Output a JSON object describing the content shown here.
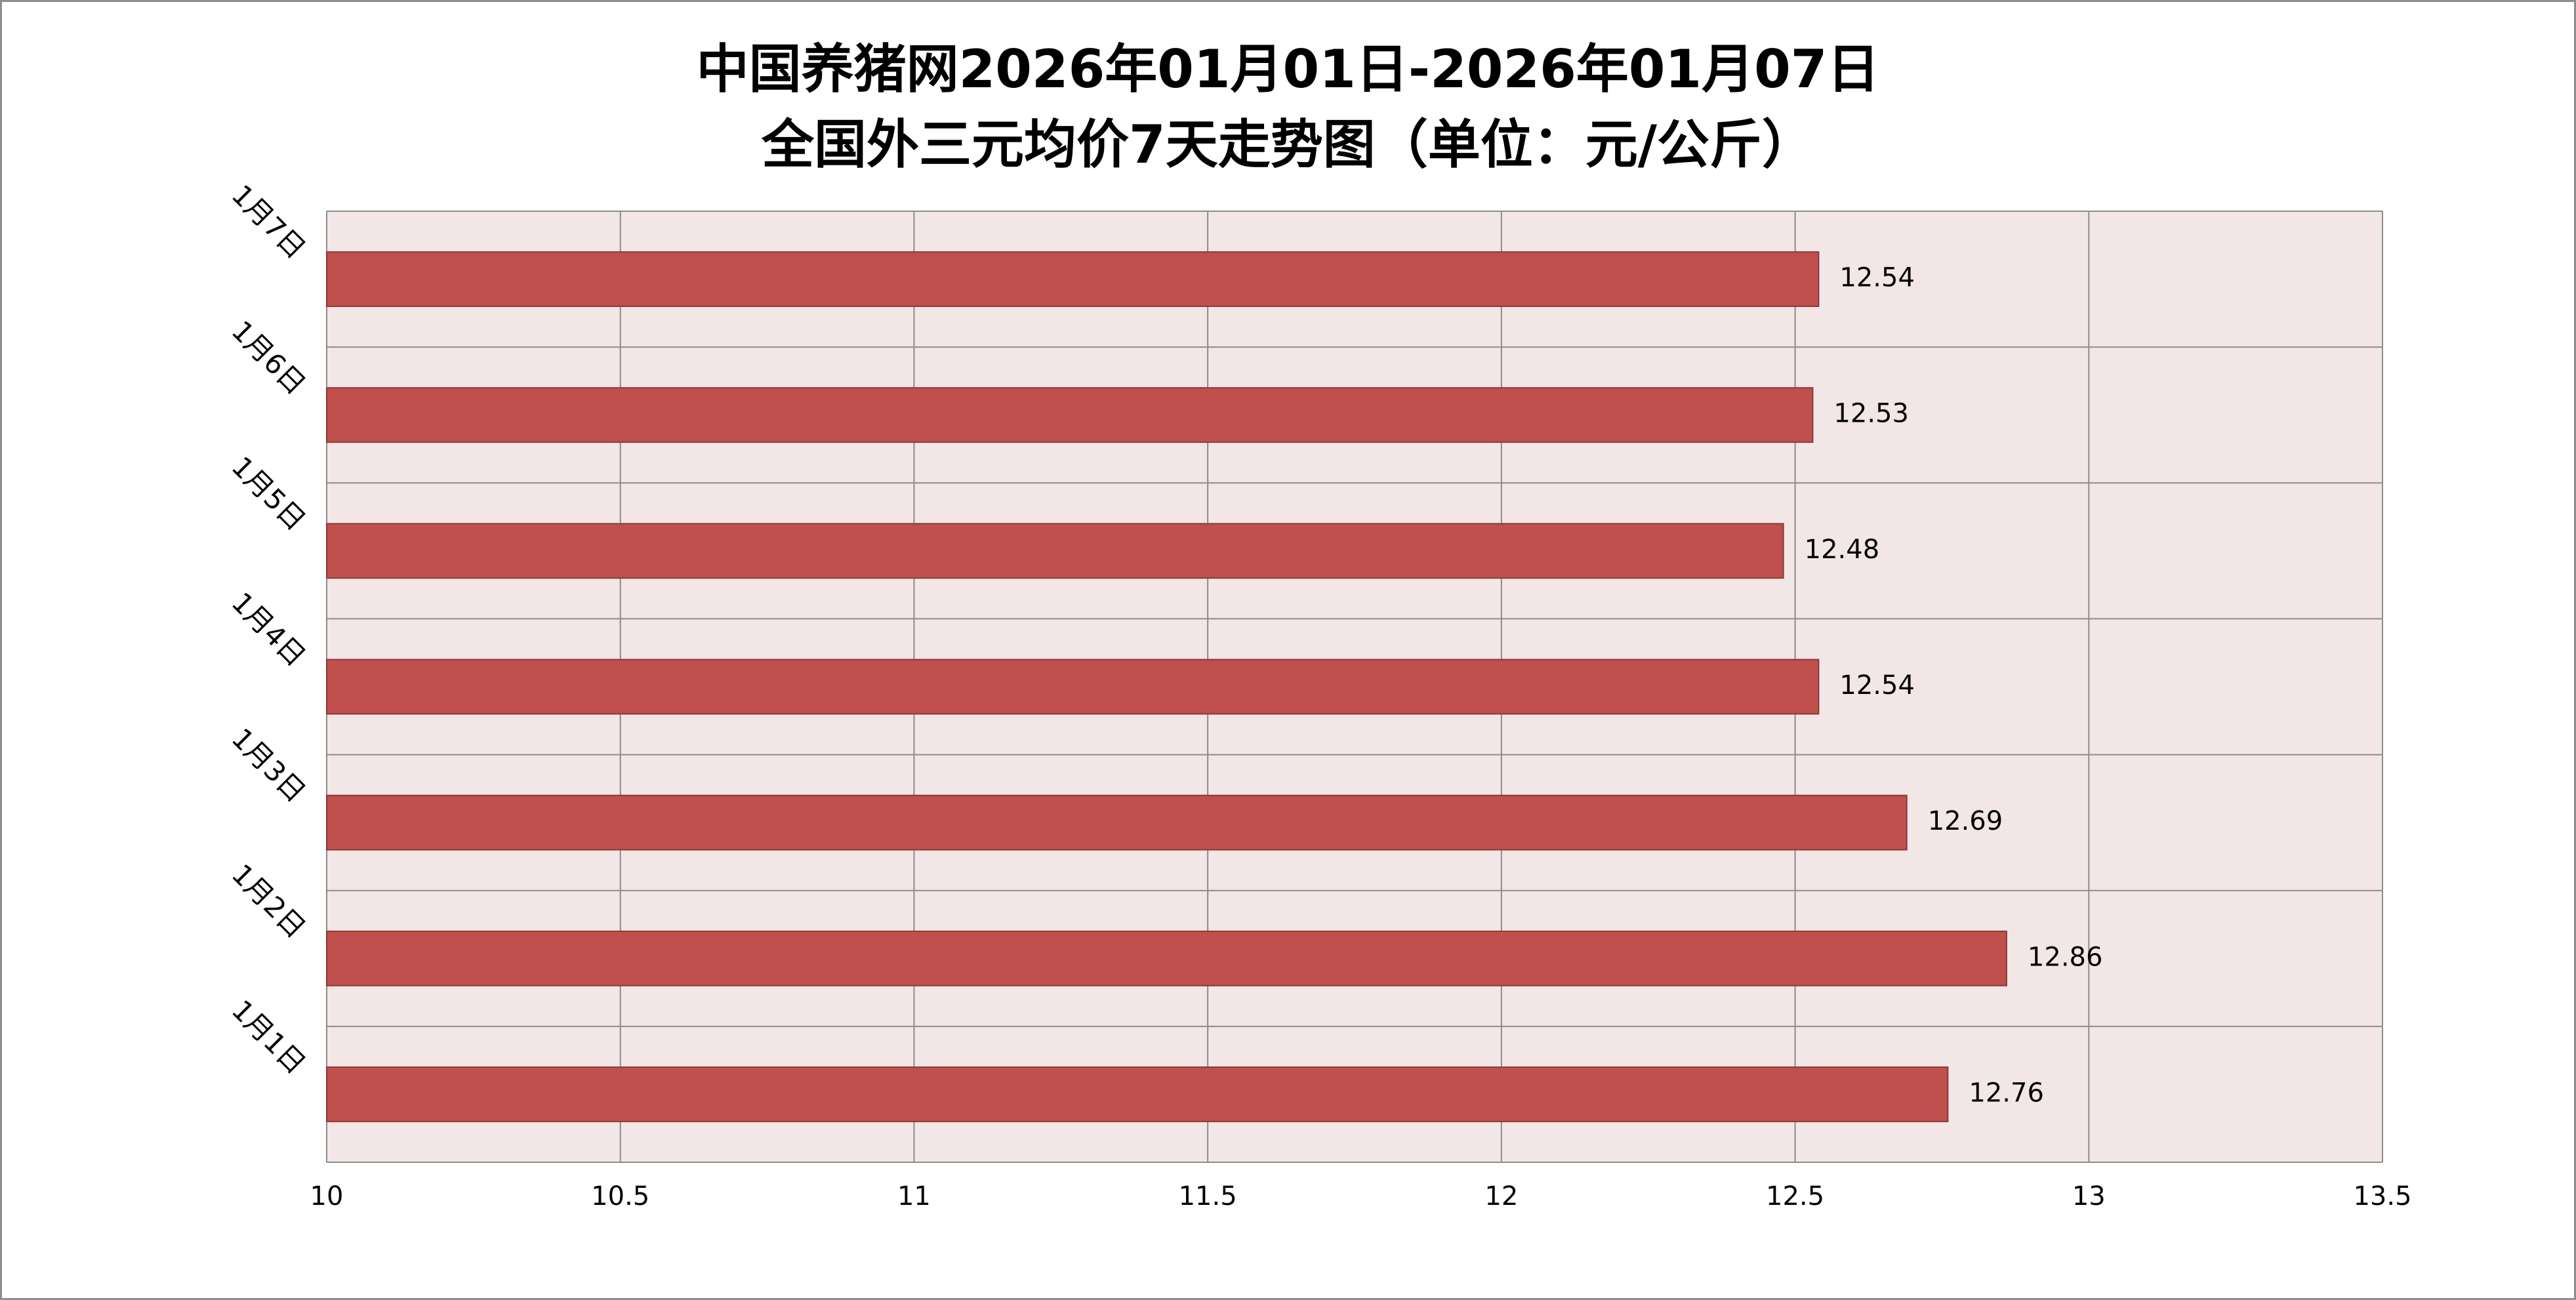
{
  "title_lines": [
    "中国养猪网2026年01月01日-2026年01月07日",
    "全国外三元均价7天走势图（单位：元/公斤）"
  ],
  "colors": {
    "bar": "#c0504d",
    "bar_border": "#8c3836",
    "plot_background": "#f2e6e6",
    "gridline": "#8c8c8c"
  },
  "chart_data": {
    "type": "bar",
    "orientation": "horizontal",
    "title": "中国养猪网2026年01月01日-2026年01月07日 全国外三元均价7天走势图（单位：元/公斤）",
    "categories": [
      "1月1日",
      "1月2日",
      "1月3日",
      "1月4日",
      "1月5日",
      "1月6日",
      "1月7日"
    ],
    "values": [
      12.76,
      12.86,
      12.69,
      12.54,
      12.48,
      12.53,
      12.54
    ],
    "data_labels": [
      "12.76",
      "12.86",
      "12.69",
      "12.54",
      "12.48",
      "12.53",
      "12.54"
    ],
    "xlim": [
      10,
      13.5
    ],
    "x_ticks": [
      10,
      10.5,
      11,
      11.5,
      12,
      12.5,
      13,
      13.5
    ],
    "x_tick_labels": [
      "10",
      "10.5",
      "11",
      "11.5",
      "12",
      "12.5",
      "13",
      "13.5"
    ],
    "category_order": "bottom-to-top",
    "category_label_rotation": "diagonal",
    "grid": true,
    "legend": "none",
    "xlabel": "",
    "ylabel": ""
  }
}
